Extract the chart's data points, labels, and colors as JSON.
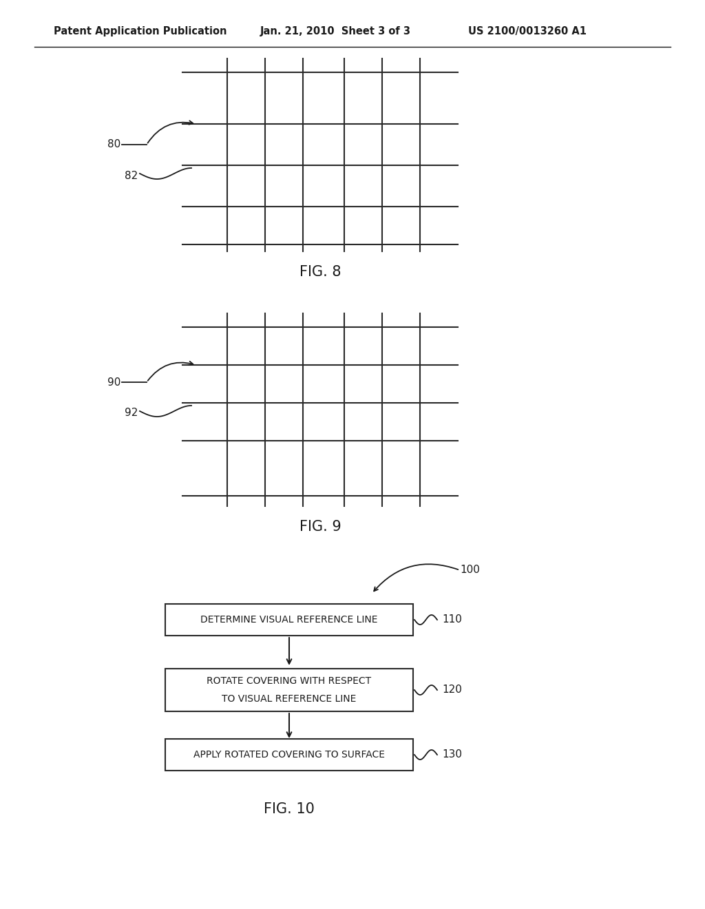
{
  "background_color": "#ffffff",
  "header_left": "Patent Application Publication",
  "header_mid": "Jan. 21, 2010  Sheet 3 of 3",
  "header_right": "US 2100/0013260 A1",
  "fig8_label": "FIG. 8",
  "fig9_label": "FIG. 9",
  "fig10_label": "FIG. 10",
  "label_80": "80",
  "label_82": "82",
  "label_90": "90",
  "label_92": "92",
  "label_100": "100",
  "label_110": "110",
  "label_120": "120",
  "label_130": "130",
  "box1_text": "DETERMINE VISUAL REFERENCE LINE",
  "box2_line1": "ROTATE COVERING WITH RESPECT",
  "box2_line2": "TO VISUAL REFERENCE LINE",
  "box3_text": "APPLY ROTATED COVERING TO SURFACE",
  "grid_color": "#2a2a2a",
  "text_color": "#1a1a1a"
}
